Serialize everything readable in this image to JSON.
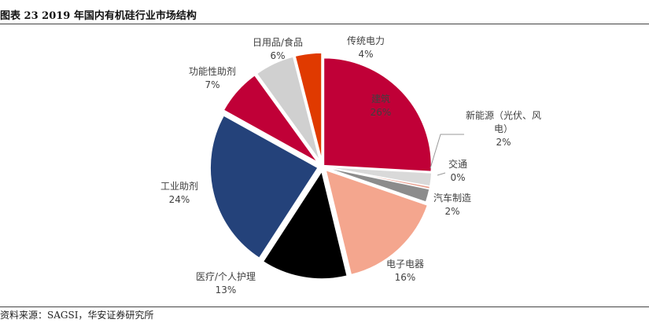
{
  "header": {
    "title": "图表 23 2019 年国内有机硅行业市场结构"
  },
  "footer": {
    "source": "资料来源：SAGSI，华安证券研究所"
  },
  "chart_data": {
    "type": "pie",
    "title": "",
    "unit": "%",
    "slices": [
      {
        "name": "建筑",
        "value": 26,
        "label": "26%",
        "color": "#C00037"
      },
      {
        "name": "新能源（光伏、风电）",
        "name_lines": [
          "新能源（光伏、风",
          "电）"
        ],
        "value": 2,
        "label": "2%",
        "color": "#D9D9D9"
      },
      {
        "name": "交通",
        "value": 0.4,
        "label": "0%",
        "color": "#E8A090"
      },
      {
        "name": "汽车制造",
        "value": 2,
        "label": "2%",
        "color": "#8C8C8C"
      },
      {
        "name": "电子电器",
        "value": 16,
        "label": "16%",
        "color": "#F4A68E"
      },
      {
        "name": "医疗/个人护理",
        "value": 13,
        "label": "13%",
        "color": "#000000"
      },
      {
        "name": "工业助剂",
        "value": 24,
        "label": "24%",
        "color": "#24427A"
      },
      {
        "name": "功能性助剂",
        "value": 7,
        "label": "7%",
        "color": "#C00037"
      },
      {
        "name": "日用品/食品",
        "value": 6,
        "label": "6%",
        "color": "#D0D0D0"
      },
      {
        "name": "传统电力",
        "value": 4,
        "label": "4%",
        "color": "#E03A00"
      }
    ]
  }
}
